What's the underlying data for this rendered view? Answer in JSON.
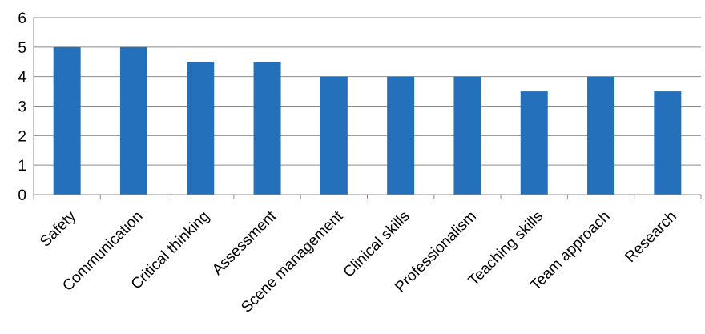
{
  "chart_data": {
    "type": "bar",
    "categories": [
      "Safety",
      "Communication",
      "Critical thinking",
      "Assessment",
      "Scene management",
      "Clinical skills",
      "Professionalism",
      "Teaching skills",
      "Team approach",
      "Research"
    ],
    "values": [
      5,
      5,
      4.5,
      4.5,
      4,
      4,
      4,
      3.5,
      4,
      3.5
    ],
    "title": "",
    "xlabel": "",
    "ylabel": "",
    "ylim": [
      0,
      6
    ],
    "yticks": [
      "0",
      "1",
      "2",
      "3",
      "4",
      "5",
      "6"
    ],
    "grid": true,
    "legend": "none",
    "colors": {
      "bar": "#2470BA",
      "grid": "#8C8C8C",
      "axis": "#8C8C8C"
    }
  }
}
